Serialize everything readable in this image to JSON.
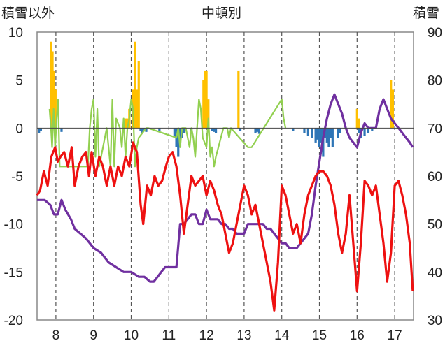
{
  "chart_data": {
    "type": "combo",
    "title": "中頓別",
    "left_axis_label": "積雪以外",
    "right_axis_label": "積雪",
    "left_ylim": [
      -20,
      10
    ],
    "right_ylim": [
      30,
      90
    ],
    "left_ticks": [
      "10",
      "5",
      "0",
      "-5",
      "-10",
      "-15",
      "-20"
    ],
    "right_ticks": [
      "90",
      "80",
      "70",
      "60",
      "50",
      "40",
      "30"
    ],
    "x_ticks": [
      "8",
      "9",
      "10",
      "11",
      "12",
      "13",
      "14",
      "15",
      "16",
      "17"
    ],
    "xlim": [
      7.5,
      17.5
    ],
    "grid": "vertical dashed at ticks",
    "colors": {
      "red": "#ee1111",
      "purple": "#7030a0",
      "green": "#92d050",
      "gold": "#ffc000",
      "blue": "#2e75b6"
    },
    "series": [
      {
        "axis": "left",
        "color": "red",
        "x": [
          7.5,
          7.58,
          7.68,
          7.78,
          7.88,
          7.98,
          8.05,
          8.12,
          8.22,
          8.32,
          8.42,
          8.5,
          8.6,
          8.7,
          8.8,
          8.88,
          8.95,
          9.05,
          9.15,
          9.25,
          9.35,
          9.45,
          9.55,
          9.65,
          9.75,
          9.85,
          9.95,
          10.05,
          10.15,
          10.25,
          10.32,
          10.42,
          10.52,
          10.62,
          10.72,
          10.82,
          10.92,
          11.0,
          11.1,
          11.2,
          11.3,
          11.4,
          11.5,
          11.6,
          11.7,
          11.8,
          11.9,
          12.0,
          12.1,
          12.2,
          12.3,
          12.4,
          12.5,
          12.6,
          12.7,
          12.8,
          12.9,
          13.0,
          13.1,
          13.2,
          13.3,
          13.4,
          13.5,
          13.6,
          13.7,
          13.8,
          13.9,
          14.0,
          14.1,
          14.2,
          14.3,
          14.4,
          14.5,
          14.6,
          14.7,
          14.8,
          14.9,
          15.0,
          15.1,
          15.2,
          15.3,
          15.4,
          15.5,
          15.6,
          15.7,
          15.8,
          15.9,
          16.0,
          16.1,
          16.2,
          16.3,
          16.4,
          16.5,
          16.6,
          16.7,
          16.8,
          16.9,
          17.0,
          17.1,
          17.2,
          17.3,
          17.4,
          17.48
        ],
        "y": [
          -7,
          -6.5,
          -4.5,
          -6,
          -3,
          -2,
          -3.5,
          -3,
          -2.5,
          -4,
          -2,
          -6,
          -4,
          -3,
          -2.5,
          -5,
          -2.5,
          -5,
          -3,
          -4,
          -6,
          -4,
          -6,
          -4,
          -5,
          -3,
          -4,
          -1.5,
          -2.5,
          -8,
          -10,
          -6,
          -7,
          -5,
          -6,
          -5.5,
          -4,
          -3,
          -2.5,
          -4,
          -7,
          -11,
          -8,
          -5,
          -6,
          -5.5,
          -5,
          -7,
          -5.5,
          -6.5,
          -8,
          -9,
          -11,
          -13,
          -12,
          -10,
          -8,
          -6,
          -7,
          -9,
          -8,
          -10,
          -12,
          -14,
          -16,
          -19,
          -14,
          -6,
          -7,
          -9,
          -11,
          -10,
          -12,
          -9,
          -7,
          -6,
          -5,
          -4.5,
          -4.5,
          -5,
          -6,
          -8,
          -11,
          -13,
          -11,
          -7,
          -12,
          -17,
          -12,
          -5.5,
          -6,
          -7,
          -6,
          -9,
          -12,
          -16,
          -13,
          -6,
          -5.5,
          -7,
          -9,
          -12,
          -17
        ]
      },
      {
        "axis": "right",
        "color": "purple",
        "x": [
          7.5,
          7.7,
          7.85,
          7.95,
          8.05,
          8.15,
          8.25,
          8.4,
          8.5,
          8.65,
          8.8,
          9.0,
          9.2,
          9.4,
          9.6,
          9.8,
          10.0,
          10.2,
          10.35,
          10.5,
          10.6,
          10.7,
          10.8,
          10.9,
          11.0,
          11.1,
          11.2,
          11.3,
          11.4,
          11.5,
          11.6,
          11.7,
          11.8,
          11.9,
          12.0,
          12.1,
          12.2,
          12.3,
          12.4,
          12.5,
          12.6,
          12.7,
          12.8,
          12.9,
          13.0,
          13.1,
          13.2,
          13.3,
          13.4,
          13.5,
          13.6,
          13.7,
          13.8,
          13.9,
          14.0,
          14.1,
          14.2,
          14.3,
          14.4,
          14.5,
          14.6,
          14.7,
          14.8,
          14.9,
          15.0,
          15.1,
          15.2,
          15.3,
          15.4,
          15.5,
          15.6,
          15.7,
          15.8,
          15.9,
          16.0,
          16.1,
          16.2,
          16.3,
          16.4,
          16.5,
          16.6,
          16.7,
          16.8,
          16.9,
          17.0,
          17.1,
          17.2,
          17.3,
          17.4,
          17.48
        ],
        "y": [
          55,
          55,
          54,
          52,
          52,
          55,
          53,
          51,
          49,
          48,
          47,
          45,
          44,
          42,
          41,
          40,
          40,
          39,
          39,
          38,
          38,
          39,
          40,
          41,
          41,
          41,
          41,
          50,
          50,
          51,
          52,
          52,
          50,
          50,
          53,
          51,
          51,
          51,
          50,
          50,
          49,
          49,
          48,
          48,
          48,
          50,
          50,
          50,
          50,
          50,
          49,
          49,
          48,
          47,
          46,
          46,
          45,
          45,
          45,
          46,
          47,
          48,
          52,
          58,
          63,
          68,
          72,
          75,
          77,
          75,
          73,
          70,
          68,
          67,
          66,
          69,
          71,
          70,
          70,
          70,
          74,
          76,
          74,
          72,
          71,
          70,
          69,
          68,
          67,
          66
        ]
      },
      {
        "axis": "left",
        "color": "green",
        "x": [
          7.83,
          7.87,
          7.9,
          7.94,
          7.98,
          8.02,
          8.06,
          8.1,
          8.85,
          8.9,
          8.95,
          9.0,
          9.05,
          9.1,
          9.15,
          9.35,
          9.4,
          9.45,
          9.5,
          9.55,
          9.6,
          9.7,
          9.75,
          9.8,
          9.85,
          9.9,
          9.95,
          10.0,
          10.05,
          10.1,
          10.15,
          10.2,
          10.4,
          10.45,
          11.2,
          11.25,
          11.3,
          11.35,
          11.45,
          11.55,
          11.6,
          11.65,
          11.7,
          11.8,
          11.85,
          11.9,
          12.0,
          12.05,
          12.1,
          12.15,
          12.2,
          12.25,
          12.45,
          12.55,
          12.6,
          12.65,
          13.1,
          13.15,
          13.2,
          14.0,
          14.05,
          14.1
        ],
        "y": [
          2,
          0,
          -2,
          2,
          -2,
          1,
          3,
          -4,
          -4,
          0,
          2,
          3,
          -3,
          2,
          -4,
          0,
          -2,
          -4,
          3,
          -4,
          1,
          0,
          -2,
          1,
          -3,
          0,
          1,
          3,
          2,
          -4,
          -2,
          -1,
          0,
          0,
          -1,
          0,
          -2,
          0,
          0,
          -2,
          0,
          -1,
          -3,
          3,
          2,
          -1,
          -2,
          1,
          -3,
          -2,
          -4,
          -3,
          0,
          0,
          -1,
          0,
          -2,
          -2,
          -2,
          3,
          1,
          0
        ]
      },
      {
        "axis": "left",
        "color": "gold",
        "type": "bar",
        "x": [
          7.87,
          7.91,
          7.95,
          7.99,
          9.85,
          9.9,
          9.95,
          10.05,
          10.1,
          10.15,
          10.2,
          11.92,
          11.96,
          12.0,
          12.05,
          12.85,
          16.0,
          16.05,
          16.9,
          16.95
        ],
        "y": [
          9,
          8,
          6,
          4,
          1,
          1,
          2,
          4,
          9,
          4,
          7,
          5,
          6,
          6,
          3,
          6,
          2,
          1,
          5,
          4
        ]
      },
      {
        "axis": "left",
        "color": "blue",
        "type": "bar",
        "x": [
          7.55,
          7.6,
          8.15,
          10.25,
          10.3,
          10.35,
          10.4,
          10.75,
          11.15,
          11.2,
          11.25,
          11.3,
          11.35,
          11.4,
          11.6,
          12.15,
          12.2,
          12.25,
          12.9,
          13.3,
          13.35,
          13.4,
          14.3,
          14.6,
          14.7,
          14.8,
          14.9,
          14.95,
          15.0,
          15.05,
          15.1,
          15.15,
          15.2,
          15.25,
          15.3,
          15.35,
          15.5,
          15.55,
          16.05,
          16.1,
          16.2,
          16.3,
          16.4
        ],
        "y": [
          -0.5,
          -0.3,
          -0.4,
          -0.3,
          -0.5,
          -0.3,
          -0.4,
          -0.3,
          -1,
          -2,
          -3,
          -2,
          -1,
          -0.5,
          -0.6,
          -0.3,
          -0.4,
          -0.5,
          -0.3,
          -0.5,
          -0.4,
          -0.6,
          -0.3,
          -0.5,
          -0.8,
          -1,
          -1.5,
          -1.2,
          -2,
          -1.5,
          -3,
          -1,
          -1.5,
          -2,
          -1,
          -2,
          -1,
          -0.5,
          -0.5,
          -1,
          -0.8,
          -0.5,
          -0.3
        ]
      }
    ]
  }
}
